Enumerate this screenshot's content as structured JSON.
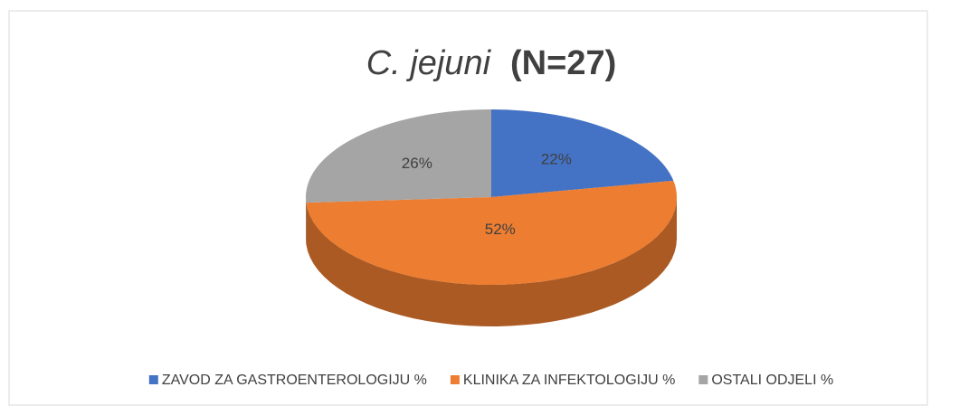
{
  "chart_data": {
    "type": "pie",
    "title": [
      "C. jejuni",
      "(N=27)"
    ],
    "categories": [
      "ZAVOD ZA GASTROENTEROLOGIJU %",
      "KLINIKA ZA INFEKTOLOGIJU %",
      "OSTALI ODJELI %"
    ],
    "values": [
      22,
      52,
      26
    ],
    "value_labels": [
      "22%",
      "52%",
      "26%"
    ],
    "colors": [
      "#4472c4",
      "#ed7d31",
      "#a5a5a5"
    ],
    "legend": "bottom"
  }
}
